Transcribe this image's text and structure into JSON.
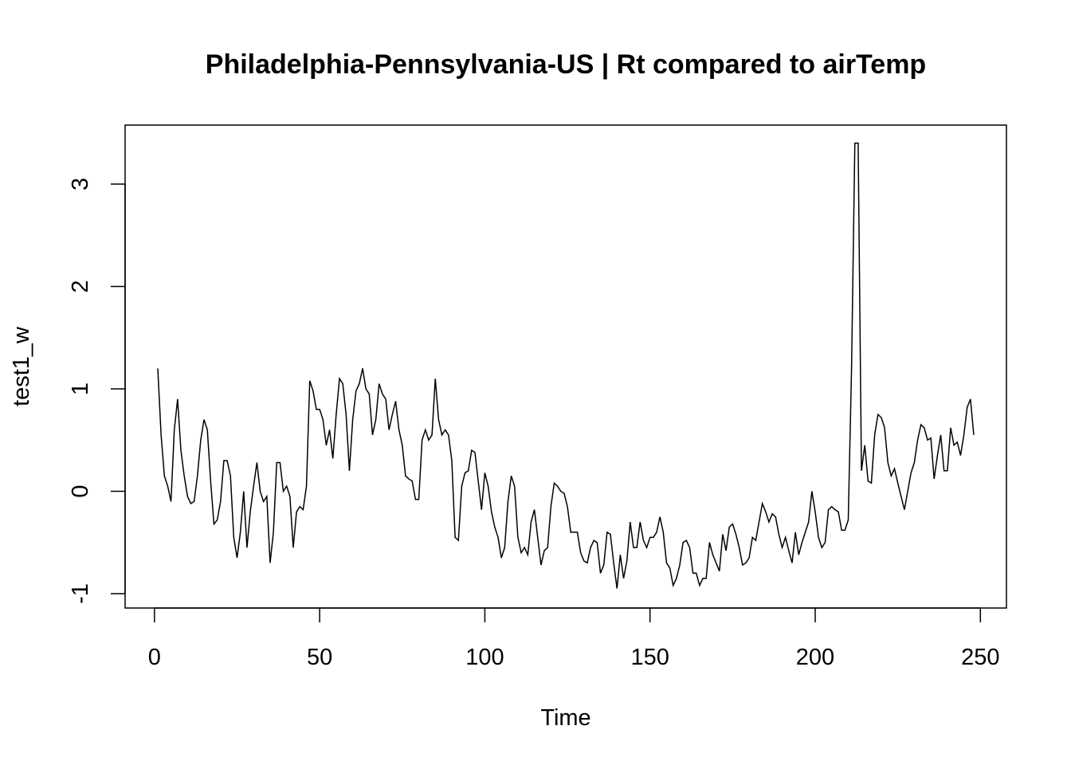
{
  "chart_data": {
    "type": "line",
    "title": "Philadelphia-Pennsylvania-US | Rt compared to airTemp",
    "xlabel": "Time",
    "ylabel": "test1_w",
    "xlim": [
      1,
      248
    ],
    "ylim": [
      -0.95,
      3.4
    ],
    "x_ticks": [
      0,
      50,
      100,
      150,
      200,
      250
    ],
    "x_tick_labels": [
      "0",
      "50",
      "100",
      "150",
      "200",
      "250"
    ],
    "y_ticks": [
      -1,
      0,
      1,
      2,
      3
    ],
    "y_tick_labels": [
      "-1",
      "0",
      "1",
      "2",
      "3"
    ],
    "grid": false,
    "legend": "none",
    "line_color": "#000000",
    "series": [
      {
        "values": [
          1.2,
          0.55,
          0.15,
          0.05,
          -0.1,
          0.6,
          0.9,
          0.4,
          0.15,
          -0.05,
          -0.12,
          -0.1,
          0.15,
          0.5,
          0.7,
          0.6,
          0.1,
          -0.32,
          -0.28,
          -0.1,
          0.3,
          0.3,
          0.15,
          -0.45,
          -0.65,
          -0.4,
          0.0,
          -0.55,
          -0.2,
          0.05,
          0.28,
          0.0,
          -0.1,
          -0.05,
          -0.7,
          -0.4,
          0.28,
          0.28,
          0.0,
          0.05,
          -0.05,
          -0.55,
          -0.2,
          -0.15,
          -0.18,
          0.05,
          1.08,
          0.98,
          0.8,
          0.8,
          0.7,
          0.45,
          0.6,
          0.32,
          0.75,
          1.1,
          1.05,
          0.75,
          0.2,
          0.7,
          0.98,
          1.05,
          1.2,
          1.0,
          0.95,
          0.55,
          0.7,
          1.05,
          0.95,
          0.9,
          0.6,
          0.75,
          0.88,
          0.6,
          0.45,
          0.15,
          0.12,
          0.1,
          -0.08,
          -0.08,
          0.5,
          0.6,
          0.5,
          0.55,
          1.1,
          0.7,
          0.55,
          0.6,
          0.55,
          0.3,
          -0.45,
          -0.48,
          0.05,
          0.18,
          0.2,
          0.4,
          0.38,
          0.1,
          -0.18,
          0.18,
          0.05,
          -0.2,
          -0.35,
          -0.45,
          -0.65,
          -0.55,
          -0.1,
          0.15,
          0.05,
          -0.45,
          -0.6,
          -0.55,
          -0.62,
          -0.3,
          -0.18,
          -0.45,
          -0.72,
          -0.58,
          -0.55,
          -0.15,
          0.08,
          0.05,
          0.0,
          -0.02,
          -0.15,
          -0.4,
          -0.4,
          -0.4,
          -0.6,
          -0.68,
          -0.7,
          -0.55,
          -0.48,
          -0.5,
          -0.8,
          -0.72,
          -0.4,
          -0.42,
          -0.7,
          -0.95,
          -0.62,
          -0.85,
          -0.68,
          -0.3,
          -0.55,
          -0.55,
          -0.3,
          -0.48,
          -0.55,
          -0.45,
          -0.45,
          -0.4,
          -0.25,
          -0.4,
          -0.7,
          -0.75,
          -0.92,
          -0.85,
          -0.72,
          -0.5,
          -0.48,
          -0.55,
          -0.8,
          -0.8,
          -0.92,
          -0.85,
          -0.85,
          -0.5,
          -0.62,
          -0.7,
          -0.78,
          -0.42,
          -0.58,
          -0.35,
          -0.32,
          -0.42,
          -0.55,
          -0.72,
          -0.7,
          -0.65,
          -0.45,
          -0.48,
          -0.3,
          -0.12,
          -0.2,
          -0.3,
          -0.22,
          -0.25,
          -0.42,
          -0.55,
          -0.45,
          -0.58,
          -0.7,
          -0.4,
          -0.62,
          -0.5,
          -0.4,
          -0.3,
          0.0,
          -0.2,
          -0.45,
          -0.55,
          -0.5,
          -0.18,
          -0.15,
          -0.18,
          -0.2,
          -0.38,
          -0.38,
          -0.28,
          1.2,
          3.4,
          3.4,
          0.2,
          0.45,
          0.1,
          0.08,
          0.55,
          0.75,
          0.72,
          0.62,
          0.28,
          0.15,
          0.22,
          0.08,
          -0.05,
          -0.18,
          0.0,
          0.18,
          0.28,
          0.5,
          0.65,
          0.62,
          0.5,
          0.52,
          0.12,
          0.35,
          0.55,
          0.2,
          0.2,
          0.62,
          0.45,
          0.48,
          0.35,
          0.55,
          0.82,
          0.9,
          0.55
        ]
      }
    ]
  }
}
